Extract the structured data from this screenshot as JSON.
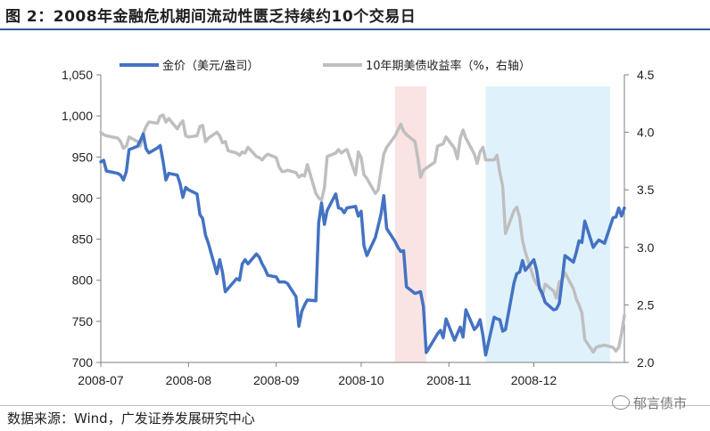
{
  "title": "图 2：2008年金融危机期间流动性匮乏持续约10个交易日",
  "source": "数据来源：Wind，广发证券发展研究中心",
  "watermark": "郁言债市",
  "colors": {
    "gold": "#4472c4",
    "treasury": "#bfbfbf",
    "shade_pink": "#f9e3e3",
    "shade_blue": "#dff2fb",
    "title_rule": "#2e5b9a"
  },
  "chart_data": {
    "type": "line",
    "title": "图 2：2008年金融危机期间流动性匮乏持续约10个交易日",
    "x_tick_labels": [
      "2008-07",
      "2008-08",
      "2008-09",
      "2008-10",
      "2008-11",
      "2008-12"
    ],
    "x_range": [
      "2008-07-01",
      "2008-12-31"
    ],
    "y_left": {
      "range": [
        700,
        1050
      ],
      "ticks": [
        700,
        750,
        800,
        850,
        900,
        950,
        "1,000",
        "1,050"
      ]
    },
    "y_right": {
      "range": [
        2.0,
        4.5
      ],
      "ticks": [
        "2.0",
        "2.5",
        "3.0",
        "3.5",
        "4.0",
        "4.5"
      ]
    },
    "legend_position": "top",
    "shaded_periods": [
      {
        "start": "2008-10-13",
        "end": "2008-10-24",
        "color": "pink"
      },
      {
        "start": "2008-11-14",
        "end": "2008-12-28",
        "color": "light-blue"
      }
    ],
    "series": [
      {
        "name": "金价（美元/盎司）",
        "axis": "left",
        "color": "#4472c4",
        "points": [
          [
            "2008-07-01",
            944
          ],
          [
            "2008-07-02",
            946
          ],
          [
            "2008-07-03",
            933
          ],
          [
            "2008-07-07",
            930
          ],
          [
            "2008-07-08",
            928
          ],
          [
            "2008-07-09",
            922
          ],
          [
            "2008-07-10",
            932
          ],
          [
            "2008-07-11",
            959
          ],
          [
            "2008-07-14",
            963
          ],
          [
            "2008-07-15",
            970
          ],
          [
            "2008-07-16",
            978
          ],
          [
            "2008-07-17",
            960
          ],
          [
            "2008-07-18",
            955
          ],
          [
            "2008-07-21",
            961
          ],
          [
            "2008-07-22",
            964
          ],
          [
            "2008-07-23",
            945
          ],
          [
            "2008-07-24",
            922
          ],
          [
            "2008-07-25",
            930
          ],
          [
            "2008-07-28",
            928
          ],
          [
            "2008-07-29",
            918
          ],
          [
            "2008-07-30",
            901
          ],
          [
            "2008-07-31",
            913
          ],
          [
            "2008-08-01",
            910
          ],
          [
            "2008-08-04",
            905
          ],
          [
            "2008-08-05",
            880
          ],
          [
            "2008-08-06",
            875
          ],
          [
            "2008-08-07",
            855
          ],
          [
            "2008-08-08",
            845
          ],
          [
            "2008-08-11",
            808
          ],
          [
            "2008-08-12",
            825
          ],
          [
            "2008-08-13",
            810
          ],
          [
            "2008-08-14",
            786
          ],
          [
            "2008-08-15",
            790
          ],
          [
            "2008-08-18",
            802
          ],
          [
            "2008-08-19",
            800
          ],
          [
            "2008-08-20",
            820
          ],
          [
            "2008-08-21",
            825
          ],
          [
            "2008-08-22",
            820
          ],
          [
            "2008-08-25",
            832
          ],
          [
            "2008-08-26",
            828
          ],
          [
            "2008-08-27",
            820
          ],
          [
            "2008-08-28",
            814
          ],
          [
            "2008-08-29",
            806
          ],
          [
            "2008-09-01",
            804
          ],
          [
            "2008-09-02",
            798
          ],
          [
            "2008-09-03",
            798
          ],
          [
            "2008-09-04",
            798
          ],
          [
            "2008-09-05",
            796
          ],
          [
            "2008-09-08",
            780
          ],
          [
            "2008-09-09",
            744
          ],
          [
            "2008-09-10",
            762
          ],
          [
            "2008-09-11",
            770
          ],
          [
            "2008-09-12",
            776
          ],
          [
            "2008-09-15",
            775
          ],
          [
            "2008-09-16",
            870
          ],
          [
            "2008-09-17",
            894
          ],
          [
            "2008-09-18",
            868
          ],
          [
            "2008-09-19",
            885
          ],
          [
            "2008-09-22",
            905
          ],
          [
            "2008-09-23",
            888
          ],
          [
            "2008-09-24",
            887
          ],
          [
            "2008-09-25",
            882
          ],
          [
            "2008-09-26",
            888
          ],
          [
            "2008-09-29",
            890
          ],
          [
            "2008-09-30",
            878
          ],
          [
            "2008-10-01",
            884
          ],
          [
            "2008-10-02",
            842
          ],
          [
            "2008-10-03",
            830
          ],
          [
            "2008-10-06",
            852
          ],
          [
            "2008-10-07",
            866
          ],
          [
            "2008-10-08",
            880
          ],
          [
            "2008-10-09",
            903
          ],
          [
            "2008-10-10",
            863
          ],
          [
            "2008-10-13",
            847
          ],
          [
            "2008-10-14",
            840
          ],
          [
            "2008-10-15",
            835
          ],
          [
            "2008-10-16",
            836
          ],
          [
            "2008-10-17",
            792
          ],
          [
            "2008-10-20",
            784
          ],
          [
            "2008-10-21",
            785
          ],
          [
            "2008-10-22",
            786
          ],
          [
            "2008-10-23",
            768
          ],
          [
            "2008-10-24",
            712
          ],
          [
            "2008-10-27",
            729
          ],
          [
            "2008-10-28",
            735
          ],
          [
            "2008-10-29",
            739
          ],
          [
            "2008-10-30",
            730
          ],
          [
            "2008-10-31",
            753
          ],
          [
            "2008-11-03",
            727
          ],
          [
            "2008-11-04",
            735
          ],
          [
            "2008-11-05",
            743
          ],
          [
            "2008-11-06",
            731
          ],
          [
            "2008-11-07",
            764
          ],
          [
            "2008-11-10",
            740
          ],
          [
            "2008-11-11",
            744
          ],
          [
            "2008-11-12",
            752
          ],
          [
            "2008-11-13",
            733
          ],
          [
            "2008-11-14",
            709
          ],
          [
            "2008-11-17",
            755
          ],
          [
            "2008-11-18",
            753
          ],
          [
            "2008-11-19",
            752
          ],
          [
            "2008-11-20",
            738
          ],
          [
            "2008-11-21",
            740
          ],
          [
            "2008-11-24",
            797
          ],
          [
            "2008-11-25",
            808
          ],
          [
            "2008-11-26",
            810
          ],
          [
            "2008-11-27",
            824
          ],
          [
            "2008-11-28",
            812
          ],
          [
            "2008-12-01",
            825
          ],
          [
            "2008-12-02",
            812
          ],
          [
            "2008-12-03",
            790
          ],
          [
            "2008-12-04",
            784
          ],
          [
            "2008-12-05",
            773
          ],
          [
            "2008-12-08",
            764
          ],
          [
            "2008-12-09",
            765
          ],
          [
            "2008-12-10",
            772
          ],
          [
            "2008-12-11",
            800
          ],
          [
            "2008-12-12",
            830
          ],
          [
            "2008-12-15",
            822
          ],
          [
            "2008-12-16",
            834
          ],
          [
            "2008-12-17",
            848
          ],
          [
            "2008-12-18",
            846
          ],
          [
            "2008-12-19",
            872
          ],
          [
            "2008-12-22",
            840
          ],
          [
            "2008-12-23",
            845
          ],
          [
            "2008-12-24",
            849
          ],
          [
            "2008-12-26",
            845
          ],
          [
            "2008-12-29",
            876
          ],
          [
            "2008-12-30",
            877
          ],
          [
            "2008-12-31",
            888
          ],
          [
            "2009-01-01",
            878
          ],
          [
            "2009-01-02",
            888
          ]
        ]
      },
      {
        "name": "10年期美债收益率（%，右轴）",
        "axis": "right",
        "color": "#bfbfbf",
        "points": [
          [
            "2008-07-01",
            4.0
          ],
          [
            "2008-07-02",
            3.98
          ],
          [
            "2008-07-03",
            3.97
          ],
          [
            "2008-07-07",
            3.95
          ],
          [
            "2008-07-08",
            3.92
          ],
          [
            "2008-07-09",
            3.86
          ],
          [
            "2008-07-10",
            3.88
          ],
          [
            "2008-07-11",
            3.96
          ],
          [
            "2008-07-14",
            3.92
          ],
          [
            "2008-07-15",
            3.88
          ],
          [
            "2008-07-16",
            3.99
          ],
          [
            "2008-07-17",
            4.05
          ],
          [
            "2008-07-18",
            4.09
          ],
          [
            "2008-07-21",
            4.08
          ],
          [
            "2008-07-22",
            4.14
          ],
          [
            "2008-07-23",
            4.15
          ],
          [
            "2008-07-24",
            4.09
          ],
          [
            "2008-07-25",
            4.12
          ],
          [
            "2008-07-28",
            4.03
          ],
          [
            "2008-07-29",
            4.07
          ],
          [
            "2008-07-30",
            4.1
          ],
          [
            "2008-07-31",
            3.97
          ],
          [
            "2008-08-01",
            3.96
          ],
          [
            "2008-08-04",
            3.97
          ],
          [
            "2008-08-05",
            4.05
          ],
          [
            "2008-08-06",
            4.06
          ],
          [
            "2008-08-07",
            3.92
          ],
          [
            "2008-08-08",
            3.95
          ],
          [
            "2008-08-11",
            4.0
          ],
          [
            "2008-08-12",
            3.97
          ],
          [
            "2008-08-13",
            3.91
          ],
          [
            "2008-08-14",
            3.92
          ],
          [
            "2008-08-15",
            3.84
          ],
          [
            "2008-08-18",
            3.82
          ],
          [
            "2008-08-19",
            3.8
          ],
          [
            "2008-08-20",
            3.83
          ],
          [
            "2008-08-21",
            3.82
          ],
          [
            "2008-08-22",
            3.87
          ],
          [
            "2008-08-25",
            3.79
          ],
          [
            "2008-08-26",
            3.78
          ],
          [
            "2008-08-27",
            3.76
          ],
          [
            "2008-08-28",
            3.79
          ],
          [
            "2008-08-29",
            3.81
          ],
          [
            "2008-09-01",
            3.78
          ],
          [
            "2008-09-02",
            3.7
          ],
          [
            "2008-09-03",
            3.66
          ],
          [
            "2008-09-04",
            3.66
          ],
          [
            "2008-09-05",
            3.67
          ],
          [
            "2008-09-08",
            3.65
          ],
          [
            "2008-09-09",
            3.61
          ],
          [
            "2008-09-10",
            3.63
          ],
          [
            "2008-09-11",
            3.62
          ],
          [
            "2008-09-12",
            3.72
          ],
          [
            "2008-09-15",
            3.47
          ],
          [
            "2008-09-16",
            3.43
          ],
          [
            "2008-09-17",
            3.41
          ],
          [
            "2008-09-18",
            3.52
          ],
          [
            "2008-09-19",
            3.79
          ],
          [
            "2008-09-22",
            3.82
          ],
          [
            "2008-09-23",
            3.85
          ],
          [
            "2008-09-24",
            3.82
          ],
          [
            "2008-09-25",
            3.84
          ],
          [
            "2008-09-26",
            3.85
          ],
          [
            "2008-09-29",
            3.63
          ],
          [
            "2008-09-30",
            3.83
          ],
          [
            "2008-10-01",
            3.78
          ],
          [
            "2008-10-02",
            3.63
          ],
          [
            "2008-10-03",
            3.6
          ],
          [
            "2008-10-06",
            3.47
          ],
          [
            "2008-10-07",
            3.5
          ],
          [
            "2008-10-08",
            3.66
          ],
          [
            "2008-10-09",
            3.81
          ],
          [
            "2008-10-10",
            3.87
          ],
          [
            "2008-10-13",
            3.97
          ],
          [
            "2008-10-14",
            4.02
          ],
          [
            "2008-10-15",
            4.07
          ],
          [
            "2008-10-16",
            4.01
          ],
          [
            "2008-10-17",
            3.98
          ],
          [
            "2008-10-20",
            3.92
          ],
          [
            "2008-10-21",
            3.78
          ],
          [
            "2008-10-22",
            3.61
          ],
          [
            "2008-10-23",
            3.67
          ],
          [
            "2008-10-24",
            3.69
          ],
          [
            "2008-10-27",
            3.74
          ],
          [
            "2008-10-28",
            3.88
          ],
          [
            "2008-10-29",
            3.89
          ],
          [
            "2008-10-30",
            3.9
          ],
          [
            "2008-10-31",
            3.96
          ],
          [
            "2008-11-03",
            3.86
          ],
          [
            "2008-11-04",
            3.77
          ],
          [
            "2008-11-05",
            3.95
          ],
          [
            "2008-11-06",
            4.02
          ],
          [
            "2008-11-07",
            3.95
          ],
          [
            "2008-11-10",
            3.81
          ],
          [
            "2008-11-11",
            3.73
          ],
          [
            "2008-11-12",
            3.83
          ],
          [
            "2008-11-13",
            3.87
          ],
          [
            "2008-11-14",
            3.76
          ],
          [
            "2008-11-17",
            3.76
          ],
          [
            "2008-11-18",
            3.8
          ],
          [
            "2008-11-19",
            3.65
          ],
          [
            "2008-11-20",
            3.53
          ],
          [
            "2008-11-21",
            3.12
          ],
          [
            "2008-11-24",
            3.32
          ],
          [
            "2008-11-25",
            3.35
          ],
          [
            "2008-11-26",
            3.26
          ],
          [
            "2008-11-27",
            3.06
          ],
          [
            "2008-11-28",
            2.96
          ],
          [
            "2008-12-01",
            2.73
          ],
          [
            "2008-12-02",
            2.68
          ],
          [
            "2008-12-03",
            2.66
          ],
          [
            "2008-12-04",
            2.58
          ],
          [
            "2008-12-05",
            2.68
          ],
          [
            "2008-12-08",
            2.62
          ],
          [
            "2008-12-09",
            2.56
          ],
          [
            "2008-12-10",
            2.7
          ],
          [
            "2008-12-11",
            2.72
          ],
          [
            "2008-12-12",
            2.78
          ],
          [
            "2008-12-15",
            2.64
          ],
          [
            "2008-12-16",
            2.55
          ],
          [
            "2008-12-17",
            2.5
          ],
          [
            "2008-12-18",
            2.43
          ],
          [
            "2008-12-19",
            2.2
          ],
          [
            "2008-12-22",
            2.09
          ],
          [
            "2008-12-23",
            2.13
          ],
          [
            "2008-12-24",
            2.14
          ],
          [
            "2008-12-26",
            2.15
          ],
          [
            "2008-12-29",
            2.13
          ],
          [
            "2008-12-30",
            2.1
          ],
          [
            "2008-12-31",
            2.13
          ],
          [
            "2009-01-01",
            2.25
          ],
          [
            "2009-01-02",
            2.41
          ]
        ]
      }
    ]
  }
}
